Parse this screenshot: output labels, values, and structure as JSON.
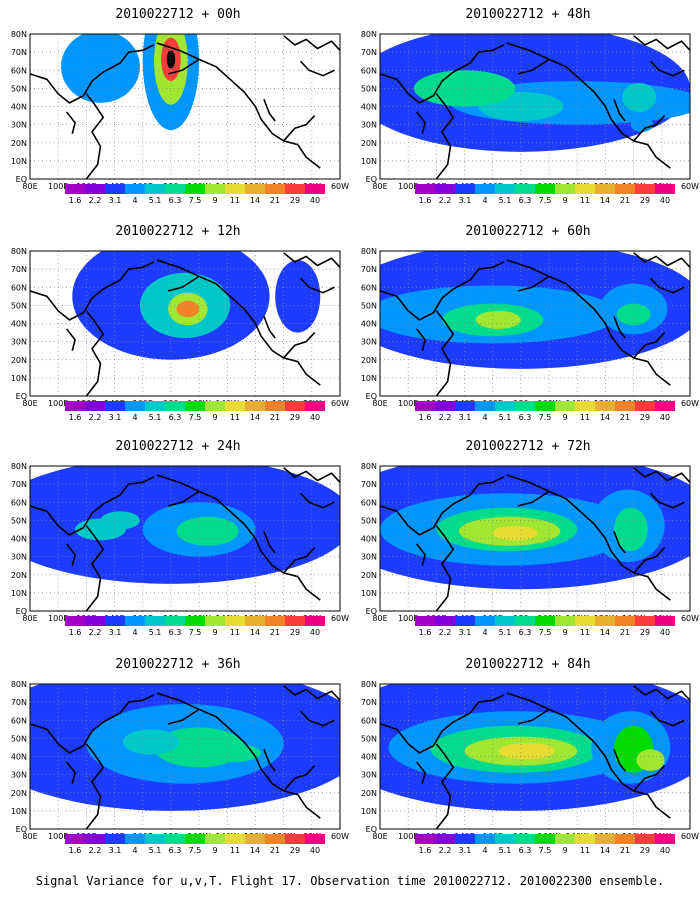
{
  "panels": [
    {
      "title": "2010022712 + 00h",
      "blobs": [
        [
          5,
          1.5,
          1.0,
          3.8,
          3
        ],
        [
          5,
          1.5,
          0.6,
          2.4,
          7
        ],
        [
          5,
          1.4,
          0.35,
          1.2,
          11
        ],
        [
          5,
          1.4,
          0.15,
          0.5,
          13
        ],
        [
          2.5,
          1.8,
          1.4,
          2.0,
          3
        ]
      ]
    },
    {
      "title": "2010022712 + 48h",
      "blobs": [
        [
          5,
          3,
          6,
          3.5,
          2
        ],
        [
          7,
          3.8,
          4.5,
          1.2,
          3
        ],
        [
          5,
          4,
          1.5,
          0.8,
          4
        ],
        [
          3,
          3,
          1.8,
          1,
          5
        ],
        [
          9.2,
          3.5,
          0.6,
          0.8,
          4
        ],
        [
          9.3,
          5,
          0.4,
          0.4,
          3
        ]
      ]
    },
    {
      "title": "2010022712 + 12h",
      "blobs": [
        [
          5,
          2.5,
          3.5,
          3.5,
          2
        ],
        [
          5.5,
          3,
          1.6,
          1.8,
          4
        ],
        [
          5.6,
          3.2,
          0.7,
          0.9,
          7
        ],
        [
          5.6,
          3.2,
          0.4,
          0.45,
          10
        ],
        [
          9.5,
          2.5,
          0.8,
          2,
          2
        ]
      ]
    },
    {
      "title": "2010022712 + 60h",
      "blobs": [
        [
          5,
          3,
          6.5,
          3.5,
          2
        ],
        [
          4,
          3.5,
          4.5,
          1.6,
          3
        ],
        [
          4,
          3.8,
          1.8,
          0.9,
          5
        ],
        [
          4.2,
          3.8,
          0.8,
          0.5,
          7
        ],
        [
          9,
          3.2,
          1.2,
          1.4,
          3
        ],
        [
          9,
          3.5,
          0.6,
          0.6,
          5
        ]
      ]
    },
    {
      "title": "2010022712 + 24h",
      "blobs": [
        [
          5,
          3,
          6.5,
          3.5,
          2
        ],
        [
          6,
          3.5,
          2,
          1.5,
          3
        ],
        [
          6.3,
          3.6,
          1.1,
          0.8,
          5
        ],
        [
          2.5,
          3.5,
          0.9,
          0.6,
          4
        ],
        [
          3.2,
          3,
          0.7,
          0.5,
          4
        ]
      ]
    },
    {
      "title": "2010022712 + 72h",
      "blobs": [
        [
          5,
          3,
          7,
          3.8,
          2
        ],
        [
          4.5,
          3.5,
          4.5,
          2,
          3
        ],
        [
          4.5,
          3.5,
          2.5,
          1.2,
          5
        ],
        [
          4.6,
          3.6,
          1.8,
          0.8,
          7
        ],
        [
          4.8,
          3.7,
          0.8,
          0.4,
          8
        ],
        [
          8.8,
          3.3,
          1.3,
          2,
          3
        ],
        [
          8.9,
          3.5,
          0.6,
          1.2,
          5
        ]
      ]
    },
    {
      "title": "2010022712 + 36h",
      "blobs": [
        [
          5,
          3,
          7,
          4,
          2
        ],
        [
          5.5,
          3.3,
          3.5,
          2.2,
          3
        ],
        [
          6,
          3.5,
          1.6,
          1.1,
          5
        ],
        [
          4.3,
          3.2,
          1,
          0.7,
          4
        ],
        [
          7.2,
          3.8,
          1,
          0.5,
          5
        ]
      ]
    },
    {
      "title": "2010022712 + 84h",
      "blobs": [
        [
          5,
          3,
          7,
          4,
          2
        ],
        [
          4.8,
          3.5,
          4.5,
          2,
          3
        ],
        [
          4.8,
          3.6,
          3,
          1.3,
          5
        ],
        [
          5,
          3.7,
          2,
          0.8,
          7
        ],
        [
          5.2,
          3.7,
          1,
          0.45,
          8
        ],
        [
          8.9,
          3.5,
          1.4,
          2,
          3
        ],
        [
          9,
          3.6,
          0.7,
          1.3,
          6
        ],
        [
          9.6,
          4.2,
          0.5,
          0.6,
          7
        ]
      ]
    }
  ],
  "lat_labels": [
    "80N",
    "70N",
    "60N",
    "50N",
    "40N",
    "30N",
    "20N",
    "10N",
    "EQ"
  ],
  "lon_labels": [
    "80E",
    "100E",
    "120E",
    "140E",
    "160E",
    "180",
    "160W",
    "140W",
    "120W",
    "100W",
    "80W",
    "60W"
  ],
  "colorbar": {
    "labels": [
      "1.6",
      "2.2",
      "3.1",
      "4",
      "5.1",
      "6.3",
      "7.5",
      "9",
      "11",
      "14",
      "21",
      "29",
      "40"
    ],
    "colors": [
      "#a000c8",
      "#8200dc",
      "#1e3cff",
      "#0096ff",
      "#00c8c8",
      "#00dc8c",
      "#00dc00",
      "#a0e632",
      "#e6dc32",
      "#e6af2d",
      "#f08228",
      "#fa3c3c",
      "#f00082"
    ]
  },
  "caption": "Signal Variance for u,v,T. Flight 17. Observation time 2010022712. 2010022300 ensemble."
}
